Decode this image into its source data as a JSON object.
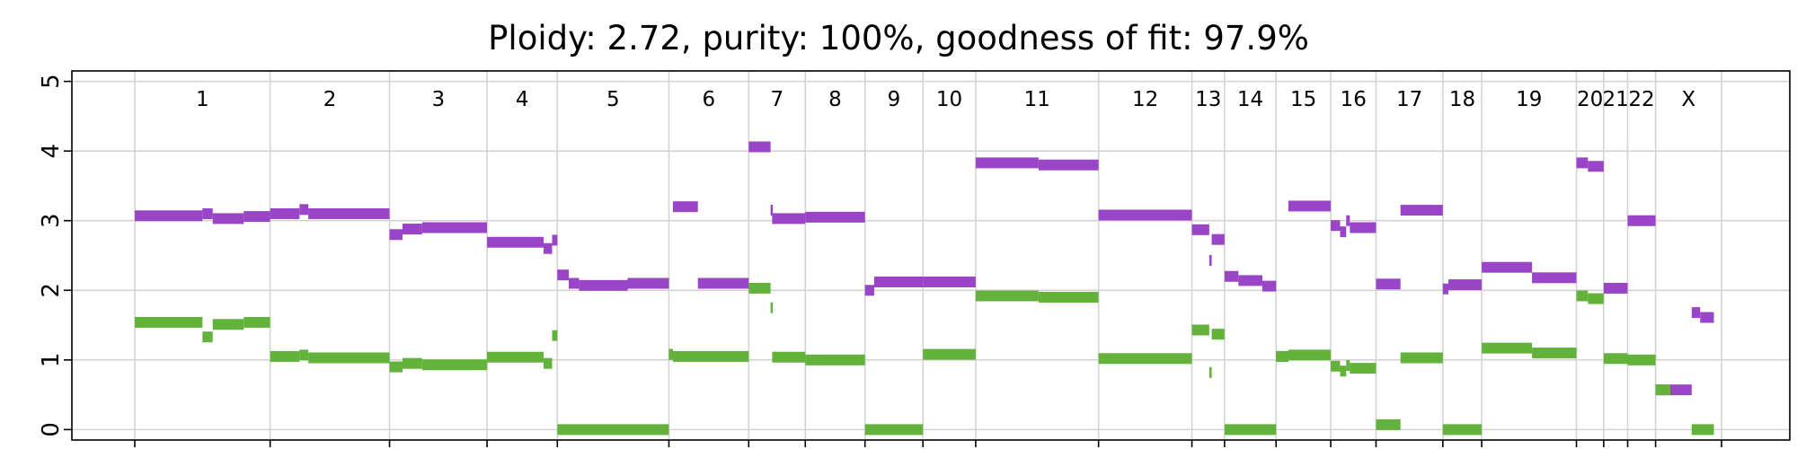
{
  "chart_data": {
    "type": "segments",
    "title": "Ploidy: 2.72, purity: 100%, goodness of fit: 97.9%",
    "xlabel": "",
    "ylabel": "",
    "ylim": [
      -0.15,
      5.15
    ],
    "yticks": [
      0,
      1,
      2,
      3,
      4,
      5
    ],
    "grid": true,
    "colors": {
      "major": "#9a44c8",
      "minor": "#63b23c"
    },
    "chromosomes": [
      {
        "name": "1",
        "start": 0.0,
        "end": 7.8
      },
      {
        "name": "2",
        "start": 7.8,
        "end": 14.68
      },
      {
        "name": "3",
        "start": 14.68,
        "end": 20.3
      },
      {
        "name": "4",
        "start": 20.3,
        "end": 24.35
      },
      {
        "name": "5",
        "start": 24.35,
        "end": 30.78
      },
      {
        "name": "6",
        "start": 30.78,
        "end": 35.38
      },
      {
        "name": "7",
        "start": 35.38,
        "end": 38.64
      },
      {
        "name": "8",
        "start": 38.64,
        "end": 42.08
      },
      {
        "name": "9",
        "start": 42.08,
        "end": 45.42
      },
      {
        "name": "10",
        "start": 45.42,
        "end": 48.46
      },
      {
        "name": "11",
        "start": 48.46,
        "end": 55.54
      },
      {
        "name": "12",
        "start": 55.54,
        "end": 60.92
      },
      {
        "name": "13",
        "start": 60.92,
        "end": 62.8
      },
      {
        "name": "14",
        "start": 62.8,
        "end": 65.77
      },
      {
        "name": "15",
        "start": 65.77,
        "end": 68.92
      },
      {
        "name": "16",
        "start": 68.92,
        "end": 71.53
      },
      {
        "name": "17",
        "start": 71.53,
        "end": 75.38
      },
      {
        "name": "18",
        "start": 75.38,
        "end": 77.62
      },
      {
        "name": "19",
        "start": 77.62,
        "end": 83.08
      },
      {
        "name": "20",
        "start": 83.08,
        "end": 84.65
      },
      {
        "name": "21",
        "start": 84.65,
        "end": 86.03
      },
      {
        "name": "22",
        "start": 86.03,
        "end": 87.64
      },
      {
        "name": "X",
        "start": 87.64,
        "end": 91.44
      }
    ],
    "series": [
      {
        "color_key": "major",
        "segments": [
          [
            0.0,
            3.9,
            3.07
          ],
          [
            3.9,
            4.49,
            3.1
          ],
          [
            4.49,
            6.28,
            3.03
          ],
          [
            6.28,
            7.8,
            3.06
          ],
          [
            7.8,
            9.49,
            3.1
          ],
          [
            9.49,
            10.0,
            3.16
          ],
          [
            10.0,
            14.68,
            3.1
          ],
          [
            14.68,
            15.43,
            2.8
          ],
          [
            15.43,
            16.56,
            2.88
          ],
          [
            16.56,
            20.3,
            2.9
          ],
          [
            20.3,
            23.56,
            2.69
          ],
          [
            23.56,
            24.05,
            2.6
          ],
          [
            24.05,
            24.35,
            2.72
          ],
          [
            24.35,
            25.01,
            2.22
          ],
          [
            25.01,
            25.6,
            2.1
          ],
          [
            25.6,
            28.4,
            2.07
          ],
          [
            28.4,
            30.78,
            2.1
          ],
          [
            30.78,
            31.01,
            1.08
          ],
          [
            31.01,
            32.45,
            3.2
          ],
          [
            32.45,
            35.38,
            2.1
          ],
          [
            35.38,
            36.64,
            4.06
          ],
          [
            36.64,
            36.73,
            3.15
          ],
          [
            36.73,
            38.64,
            3.03
          ],
          [
            38.64,
            42.08,
            3.05
          ],
          [
            42.08,
            42.61,
            2.0
          ],
          [
            42.61,
            45.42,
            2.12
          ],
          [
            45.42,
            48.46,
            2.12
          ],
          [
            48.46,
            52.08,
            3.83
          ],
          [
            52.08,
            55.54,
            3.8
          ],
          [
            55.54,
            60.92,
            3.08
          ],
          [
            60.92,
            61.92,
            2.87
          ],
          [
            61.92,
            62.06,
            2.43
          ],
          [
            62.06,
            62.8,
            2.73
          ],
          [
            62.8,
            63.6,
            2.2
          ],
          [
            63.6,
            64.98,
            2.14
          ],
          [
            64.98,
            65.77,
            2.06
          ],
          [
            65.77,
            66.48,
            1.05
          ],
          [
            66.48,
            68.92,
            3.21
          ],
          [
            68.92,
            69.46,
            2.93
          ],
          [
            69.46,
            69.81,
            2.84
          ],
          [
            69.81,
            70.02,
            3.0
          ],
          [
            70.02,
            71.53,
            2.9
          ],
          [
            71.53,
            72.94,
            2.09
          ],
          [
            72.94,
            75.38,
            3.15
          ],
          [
            75.38,
            75.7,
            2.02
          ],
          [
            75.7,
            77.62,
            2.08
          ],
          [
            77.62,
            80.52,
            2.33
          ],
          [
            80.52,
            83.08,
            2.18
          ],
          [
            83.08,
            83.74,
            3.83
          ],
          [
            83.74,
            84.65,
            3.78
          ],
          [
            84.65,
            86.03,
            2.03
          ],
          [
            86.03,
            87.64,
            3.0
          ],
          [
            87.64,
            88.48,
            0.57
          ],
          [
            88.48,
            89.72,
            0.57
          ],
          [
            89.72,
            90.21,
            1.68
          ],
          [
            90.21,
            91.0,
            1.61
          ]
        ]
      },
      {
        "color_key": "minor",
        "segments": [
          [
            0.0,
            3.9,
            1.54
          ],
          [
            3.9,
            4.49,
            1.33
          ],
          [
            4.49,
            6.28,
            1.51
          ],
          [
            6.28,
            7.8,
            1.54
          ],
          [
            7.8,
            9.49,
            1.05
          ],
          [
            9.49,
            10.0,
            1.07
          ],
          [
            10.0,
            14.68,
            1.03
          ],
          [
            14.68,
            15.43,
            0.9
          ],
          [
            15.43,
            16.56,
            0.95
          ],
          [
            16.56,
            20.3,
            0.93
          ],
          [
            20.3,
            23.56,
            1.04
          ],
          [
            23.56,
            24.05,
            0.95
          ],
          [
            24.05,
            24.35,
            1.35
          ],
          [
            24.35,
            30.78,
            0.0
          ],
          [
            30.78,
            31.01,
            1.08
          ],
          [
            31.01,
            35.38,
            1.05
          ],
          [
            35.38,
            36.64,
            2.03
          ],
          [
            36.64,
            36.73,
            1.75
          ],
          [
            36.73,
            38.64,
            1.04
          ],
          [
            38.64,
            42.08,
            1.0
          ],
          [
            42.08,
            45.42,
            0.0
          ],
          [
            45.42,
            48.46,
            1.08
          ],
          [
            48.46,
            52.08,
            1.92
          ],
          [
            52.08,
            55.54,
            1.9
          ],
          [
            55.54,
            60.92,
            1.02
          ],
          [
            60.92,
            61.92,
            1.43
          ],
          [
            61.92,
            62.06,
            0.82
          ],
          [
            62.06,
            62.8,
            1.37
          ],
          [
            62.8,
            65.77,
            0.0
          ],
          [
            65.77,
            66.48,
            1.05
          ],
          [
            66.48,
            68.92,
            1.07
          ],
          [
            68.92,
            69.46,
            0.91
          ],
          [
            69.46,
            69.81,
            0.84
          ],
          [
            69.81,
            70.02,
            0.92
          ],
          [
            70.02,
            71.53,
            0.88
          ],
          [
            71.53,
            72.94,
            0.07
          ],
          [
            72.94,
            75.38,
            1.03
          ],
          [
            75.38,
            77.62,
            0.0
          ],
          [
            77.62,
            80.52,
            1.17
          ],
          [
            80.52,
            83.08,
            1.1
          ],
          [
            83.08,
            83.74,
            1.92
          ],
          [
            83.74,
            84.65,
            1.88
          ],
          [
            84.65,
            86.03,
            1.02
          ],
          [
            86.03,
            87.64,
            1.0
          ],
          [
            87.64,
            88.48,
            0.57
          ],
          [
            89.72,
            91.0,
            0.0
          ]
        ]
      }
    ]
  }
}
